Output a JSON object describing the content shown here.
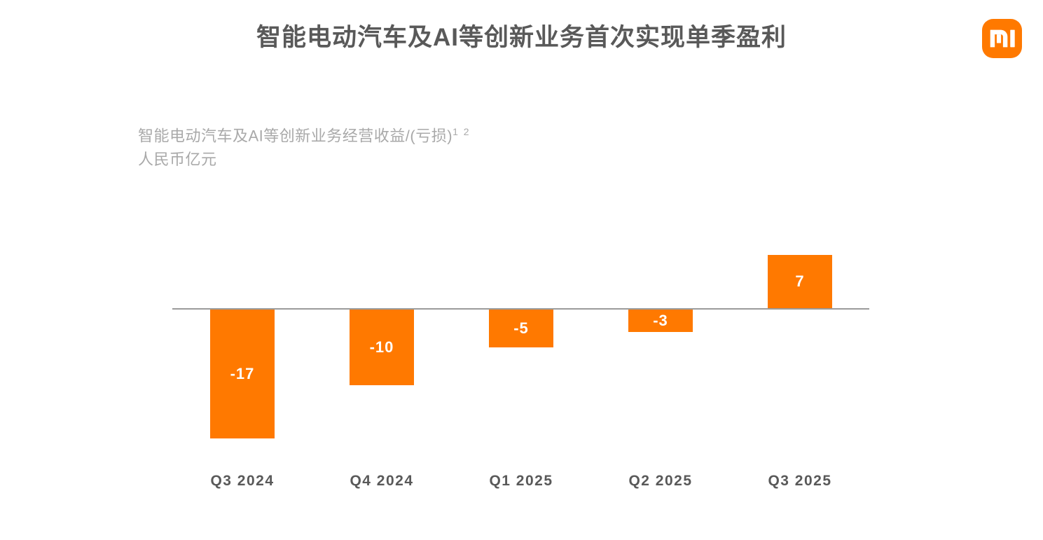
{
  "page": {
    "title": "智能电动汽车及AI等创新业务首次实现单季盈利"
  },
  "logo": {
    "name": "Xiaomi MI logo",
    "background_color": "#FF7900",
    "glyph_color": "#FFFFFF"
  },
  "subtitle": {
    "line1": "智能电动汽车及AI等创新业务经营收益/(亏损)",
    "footnote_refs": "1 2",
    "line2": "人民币亿元"
  },
  "chart_data": {
    "type": "bar",
    "title": "智能电动汽车及AI等创新业务首次实现单季盈利",
    "series_label": "智能电动汽车及AI等创新业务经营收益/(亏损)",
    "unit": "人民币亿元",
    "categories": [
      "Q3 2024",
      "Q4 2024",
      "Q1 2025",
      "Q2 2025",
      "Q3 2025"
    ],
    "values": [
      -17,
      -10,
      -5,
      -3,
      7
    ],
    "value_labels": [
      "-17",
      "-10",
      "-5",
      "-3",
      "7"
    ],
    "bar_color": "#FF7900",
    "value_label_color": "#FFFFFF",
    "baseline_color": "#9B9B9B",
    "ylim": [
      -19,
      8
    ],
    "grid": false,
    "legend": false,
    "value_labels_position": "inside-center"
  }
}
